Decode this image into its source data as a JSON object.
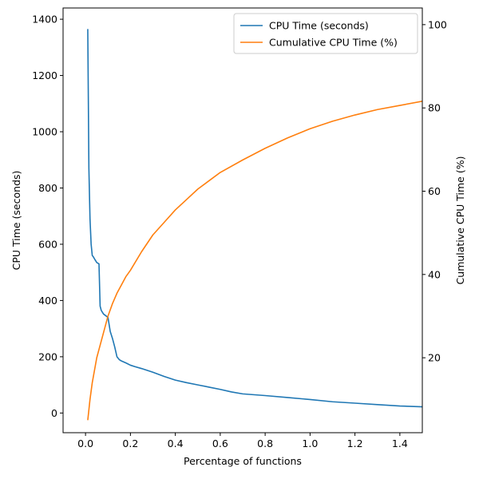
{
  "chart_data": {
    "type": "line",
    "title": "",
    "xlabel": "Percentage of functions",
    "ylabel_left": "CPU Time (seconds)",
    "ylabel_right": "Cumulative CPU Time (%)",
    "xlim": [
      -0.1,
      1.5
    ],
    "ylim_left": [
      -70,
      1440
    ],
    "ylim_right": [
      2,
      104
    ],
    "x_ticks": [
      0.0,
      0.2,
      0.4,
      0.6,
      0.8,
      1.0,
      1.2,
      1.4
    ],
    "x_tick_labels": [
      "0.0",
      "0.2",
      "0.4",
      "0.6",
      "0.8",
      "1.0",
      "1.2",
      "1.4"
    ],
    "y_left_ticks": [
      0,
      200,
      400,
      600,
      800,
      1000,
      1200,
      1400
    ],
    "y_left_tick_labels": [
      "0",
      "200",
      "400",
      "600",
      "800",
      "1000",
      "1200",
      "1400"
    ],
    "y_right_ticks": [
      20,
      40,
      60,
      80,
      100
    ],
    "y_right_tick_labels": [
      "20",
      "40",
      "60",
      "80",
      "100"
    ],
    "grid": false,
    "legend": {
      "position": "top-right"
    },
    "series": [
      {
        "name": "CPU Time (seconds)",
        "axis": "left",
        "color": "#1f77b4",
        "x": [
          0.01,
          0.015,
          0.02,
          0.025,
          0.03,
          0.035,
          0.04,
          0.05,
          0.06,
          0.065,
          0.07,
          0.08,
          0.1,
          0.11,
          0.12,
          0.13,
          0.14,
          0.15,
          0.16,
          0.18,
          0.2,
          0.22,
          0.25,
          0.3,
          0.35,
          0.4,
          0.45,
          0.5,
          0.55,
          0.6,
          0.65,
          0.7,
          0.8,
          0.9,
          1.0,
          1.1,
          1.2,
          1.3,
          1.4,
          1.5
        ],
        "y": [
          1365,
          870,
          690,
          600,
          560,
          555,
          548,
          535,
          530,
          380,
          365,
          352,
          340,
          290,
          265,
          235,
          200,
          190,
          185,
          178,
          170,
          165,
          158,
          145,
          130,
          117,
          108,
          100,
          92,
          84,
          75,
          68,
          62,
          55,
          48,
          40,
          35,
          30,
          25,
          22
        ]
      },
      {
        "name": "Cumulative CPU Time (%)",
        "axis": "right",
        "color": "#ff7f0e",
        "x": [
          0.01,
          0.02,
          0.03,
          0.04,
          0.05,
          0.06,
          0.08,
          0.1,
          0.12,
          0.14,
          0.16,
          0.18,
          0.2,
          0.25,
          0.3,
          0.35,
          0.4,
          0.45,
          0.5,
          0.55,
          0.6,
          0.7,
          0.8,
          0.9,
          1.0,
          1.1,
          1.2,
          1.3,
          1.4,
          1.5
        ],
        "y": [
          5,
          10,
          14,
          17,
          20,
          22,
          26,
          30,
          33,
          35.5,
          37.5,
          39.5,
          41,
          45.5,
          49.5,
          52.5,
          55.5,
          58,
          60.5,
          62.5,
          64.5,
          67.5,
          70.3,
          72.8,
          75,
          76.8,
          78.3,
          79.6,
          80.6,
          81.6
        ]
      }
    ]
  }
}
